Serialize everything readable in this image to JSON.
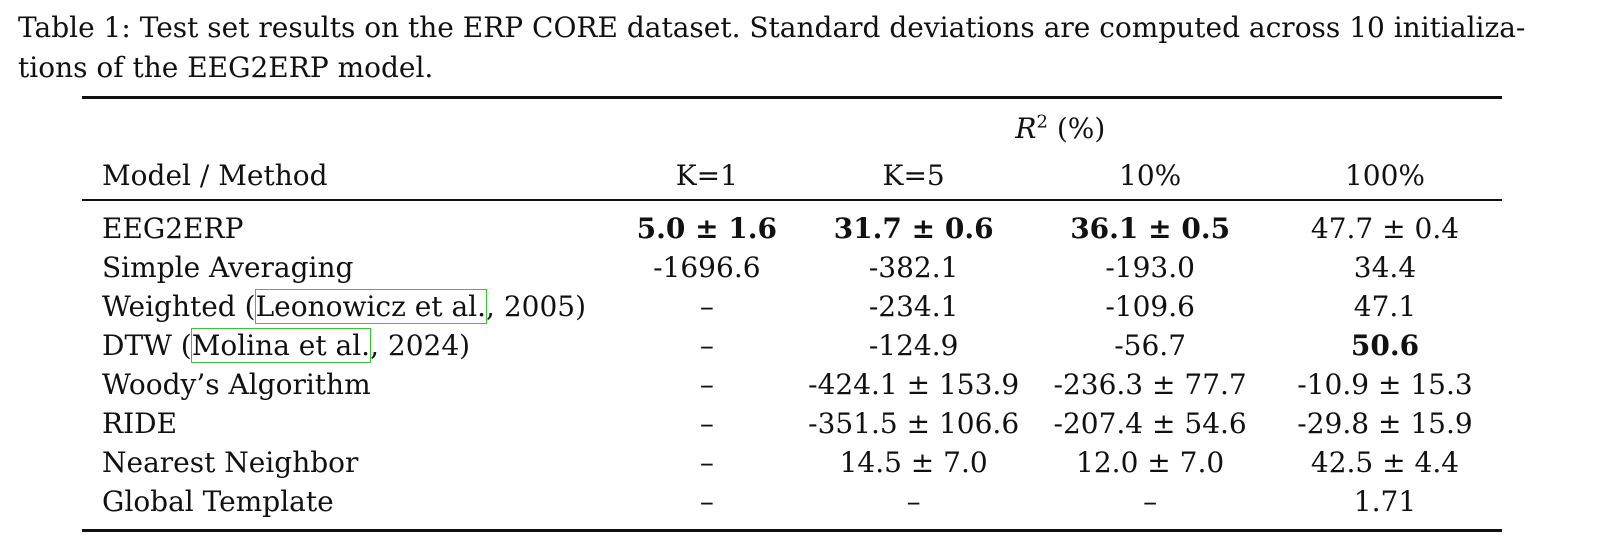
{
  "caption": {
    "line1": "Table 1: Test set results on the ERP CORE dataset. Standard deviations are computed across 10 initializa-",
    "line2": "tions of the EEG2ERP model."
  },
  "table": {
    "group_header": {
      "var": "R",
      "sup": "2",
      "unit": " (%)"
    },
    "columns": [
      "Model / Method",
      "K=1",
      "K=5",
      "10%",
      "100%"
    ],
    "rows": [
      {
        "method": "EEG2ERP",
        "values": [
          "5.0 ± 1.6",
          "31.7 ± 0.6",
          "36.1 ± 0.5",
          "47.7 ± 0.4"
        ],
        "bold": [
          true,
          true,
          true,
          false
        ]
      },
      {
        "method": "Simple Averaging",
        "values": [
          "-1696.6",
          "-382.1",
          "-193.0",
          "34.4"
        ],
        "bold": [
          false,
          false,
          false,
          false
        ]
      },
      {
        "method_prefix": "Weighted (",
        "cite": "Leonowicz et al.",
        "method_suffix": ", 2005)",
        "values": [
          "–",
          "-234.1",
          "-109.6",
          "47.1"
        ],
        "bold": [
          false,
          false,
          false,
          false
        ]
      },
      {
        "method_prefix": "DTW (",
        "cite": "Molina et al.",
        "method_suffix": ", 2024)",
        "values": [
          "–",
          "-124.9",
          "-56.7",
          "50.6"
        ],
        "bold": [
          false,
          false,
          false,
          true
        ]
      },
      {
        "method": "Woody’s Algorithm",
        "values": [
          "–",
          "-424.1 ± 153.9",
          "-236.3 ± 77.7",
          "-10.9 ± 15.3"
        ],
        "bold": [
          false,
          false,
          false,
          false
        ]
      },
      {
        "method": "RIDE",
        "values": [
          "–",
          "-351.5 ± 106.6",
          "-207.4 ± 54.6",
          "-29.8 ± 15.9"
        ],
        "bold": [
          false,
          false,
          false,
          false
        ]
      },
      {
        "method": "Nearest Neighbor",
        "values": [
          "–",
          "14.5 ± 7.0",
          "12.0 ± 7.0",
          "42.5 ± 4.4"
        ],
        "bold": [
          false,
          false,
          false,
          false
        ]
      },
      {
        "method": "Global Template",
        "values": [
          "–",
          "–",
          "–",
          "1.71"
        ],
        "bold": [
          false,
          false,
          false,
          false
        ]
      }
    ]
  }
}
